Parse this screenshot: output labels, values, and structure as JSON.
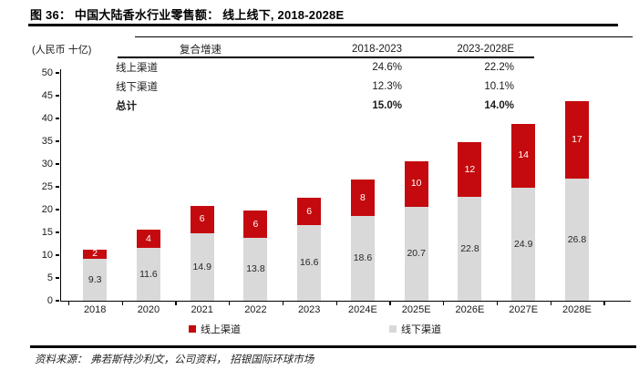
{
  "title": "图 36： 中国大陆香水行业零售额： 线上线下, 2018-2028E",
  "cagr_table": {
    "header": {
      "label": "复合增速",
      "col1": "2018-2023",
      "col2": "2023-2028E"
    },
    "rows": [
      {
        "label": "线上渠道",
        "col1": "24.6%",
        "col2": "22.2%"
      },
      {
        "label": "线下渠道",
        "col1": "12.3%",
        "col2": "10.1%"
      },
      {
        "label": "总计",
        "col1": "15.0%",
        "col2": "14.0%"
      }
    ]
  },
  "chart_data": {
    "type": "bar",
    "stacked": true,
    "title": "中国大陆香水行业零售额：线上线下, 2018-2028E",
    "ylabel": "(人民币 十亿)",
    "ylim": [
      0,
      50
    ],
    "ytick_step": 5,
    "grid": false,
    "legend_position": "bottom",
    "categories": [
      "2018",
      "2020",
      "2021",
      "2022",
      "2023",
      "2024E",
      "2025E",
      "2026E",
      "2027E",
      "2028E"
    ],
    "series": [
      {
        "name": "线下渠道",
        "color": "#D9D9D9",
        "label_color": "#262626",
        "values": [
          9.3,
          11.6,
          14.9,
          13.8,
          16.6,
          18.6,
          20.7,
          22.8,
          24.9,
          26.8
        ]
      },
      {
        "name": "线上渠道",
        "color": "#C40A0E",
        "label_color": "#ffffff",
        "values": [
          2,
          4,
          6,
          6,
          6,
          8,
          10,
          12,
          14,
          17
        ]
      }
    ],
    "legend": [
      {
        "label": "线上渠道",
        "color": "#C40A0E"
      },
      {
        "label": "线下渠道",
        "color": "#D9D9D9"
      }
    ]
  },
  "footer": {
    "source": "资料来源：  弗若斯特沙利文，公司资料， 招银国际环球市场"
  }
}
